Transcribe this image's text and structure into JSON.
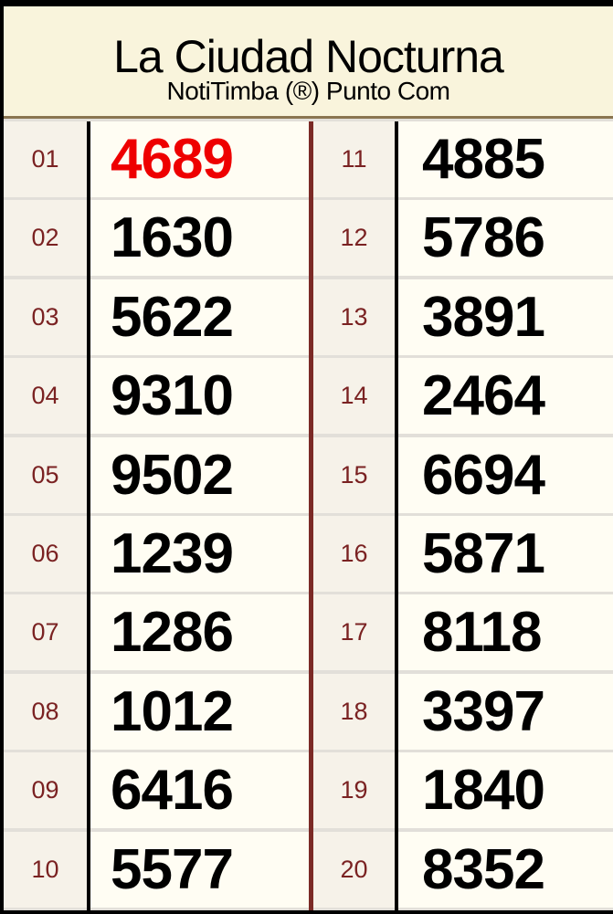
{
  "header": {
    "title": "La Ciudad Nocturna",
    "subtitle": "NotiTimba (®) Punto Com"
  },
  "colors": {
    "highlight": "#ee0000",
    "position": "#7a2222",
    "header_bg": "#f9f4dc",
    "divider": "#7b2a26"
  },
  "left": [
    {
      "pos": "01",
      "num": "4689",
      "highlight": true
    },
    {
      "pos": "02",
      "num": "1630"
    },
    {
      "pos": "03",
      "num": "5622"
    },
    {
      "pos": "04",
      "num": "9310"
    },
    {
      "pos": "05",
      "num": "9502"
    },
    {
      "pos": "06",
      "num": "1239"
    },
    {
      "pos": "07",
      "num": "1286"
    },
    {
      "pos": "08",
      "num": "1012"
    },
    {
      "pos": "09",
      "num": "6416"
    },
    {
      "pos": "10",
      "num": "5577"
    }
  ],
  "right": [
    {
      "pos": "11",
      "num": "4885"
    },
    {
      "pos": "12",
      "num": "5786"
    },
    {
      "pos": "13",
      "num": "3891"
    },
    {
      "pos": "14",
      "num": "2464"
    },
    {
      "pos": "15",
      "num": "6694"
    },
    {
      "pos": "16",
      "num": "5871"
    },
    {
      "pos": "17",
      "num": "8118"
    },
    {
      "pos": "18",
      "num": "3397"
    },
    {
      "pos": "19",
      "num": "1840"
    },
    {
      "pos": "20",
      "num": "8352"
    }
  ]
}
